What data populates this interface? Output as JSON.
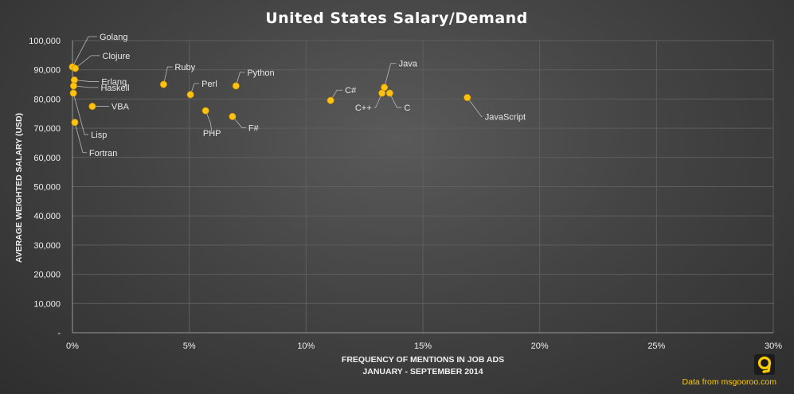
{
  "chart_data": {
    "type": "scatter",
    "title": "United States Salary/Demand",
    "xlabel_lines": [
      "FREQUENCY OF MENTIONS IN JOB ADS",
      "JANUARY - SEPTEMBER 2014"
    ],
    "ylabel": "AVERAGE WEIGHTED SALARY (USD)",
    "xlim": [
      0,
      0.3
    ],
    "ylim": [
      0,
      100000
    ],
    "x_ticks": [
      0,
      0.05,
      0.1,
      0.15,
      0.2,
      0.25,
      0.3
    ],
    "x_tick_labels": [
      "0%",
      "5%",
      "10%",
      "15%",
      "20%",
      "25%",
      "30%"
    ],
    "y_ticks": [
      0,
      10000,
      20000,
      30000,
      40000,
      50000,
      60000,
      70000,
      80000,
      90000,
      100000
    ],
    "y_tick_labels": [
      "-",
      "10,000",
      "20,000",
      "30,000",
      "40,000",
      "50,000",
      "60,000",
      "70,000",
      "80,000",
      "90,000",
      "100,000"
    ],
    "grid": true,
    "marker_color": "#ffc20e",
    "points": [
      {
        "name": "Golang",
        "x": 0.0,
        "y": 91000
      },
      {
        "name": "Clojure",
        "x": 0.0012,
        "y": 90500
      },
      {
        "name": "Erlang",
        "x": 0.0008,
        "y": 86500
      },
      {
        "name": "Haskell",
        "x": 0.0005,
        "y": 84500
      },
      {
        "name": "VBA",
        "x": 0.0085,
        "y": 77500
      },
      {
        "name": "Lisp",
        "x": 0.0004,
        "y": 82000
      },
      {
        "name": "Fortran",
        "x": 0.001,
        "y": 72000
      },
      {
        "name": "Ruby",
        "x": 0.039,
        "y": 85000
      },
      {
        "name": "Perl",
        "x": 0.0505,
        "y": 81500
      },
      {
        "name": "Python",
        "x": 0.07,
        "y": 84500
      },
      {
        "name": "PHP",
        "x": 0.057,
        "y": 76000
      },
      {
        "name": "F#",
        "x": 0.0685,
        "y": 74000
      },
      {
        "name": "C#",
        "x": 0.1105,
        "y": 79500
      },
      {
        "name": "C++",
        "x": 0.1325,
        "y": 82000
      },
      {
        "name": "Java",
        "x": 0.1335,
        "y": 84000
      },
      {
        "name": "C",
        "x": 0.1358,
        "y": 82000
      },
      {
        "name": "JavaScript",
        "x": 0.169,
        "y": 80500
      }
    ]
  },
  "credit": "Data from msgooroo.com",
  "logo_glyph": "9"
}
